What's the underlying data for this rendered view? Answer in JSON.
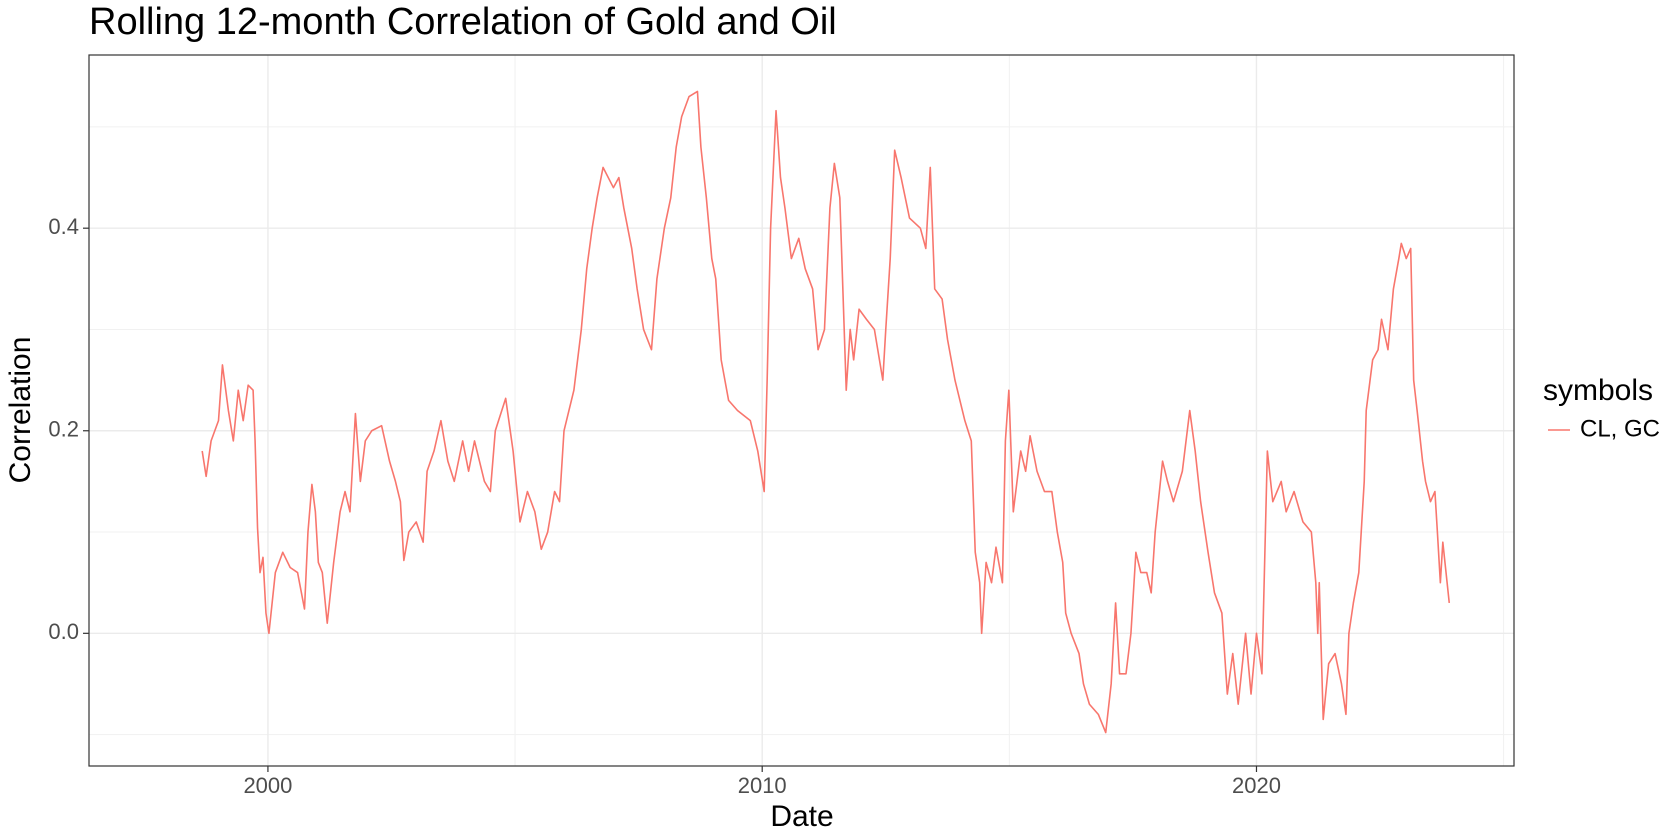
{
  "chart_data": {
    "type": "line",
    "title": "Rolling 12-month Correlation of Gold and Oil",
    "x_label": "Date",
    "y_label": "Correlation",
    "legend_title": "symbols",
    "x": [
      1998.67,
      1998.75,
      1998.85,
      1999.0,
      1999.08,
      1999.2,
      1999.3,
      1999.4,
      1999.5,
      1999.6,
      1999.7,
      1999.74,
      1999.79,
      1999.84,
      1999.9,
      1999.96,
      2000.02,
      2000.15,
      2000.3,
      2000.45,
      2000.6,
      2000.74,
      2000.81,
      2000.89,
      2000.96,
      2001.02,
      2001.1,
      2001.2,
      2001.33,
      2001.46,
      2001.56,
      2001.66,
      2001.77,
      2001.87,
      2001.97,
      2002.1,
      2002.3,
      2002.46,
      2002.58,
      2002.68,
      2002.75,
      2002.85,
      2003.0,
      2003.14,
      2003.22,
      2003.36,
      2003.5,
      2003.64,
      2003.77,
      2003.94,
      2004.06,
      2004.18,
      2004.38,
      2004.5,
      2004.6,
      2004.81,
      2004.96,
      2005.1,
      2005.25,
      2005.4,
      2005.53,
      2005.66,
      2005.8,
      2005.9,
      2005.99,
      2006.19,
      2006.34,
      2006.45,
      2006.56,
      2006.66,
      2006.78,
      2006.99,
      2007.1,
      2007.2,
      2007.36,
      2007.47,
      2007.6,
      2007.76,
      2007.87,
      2008.02,
      2008.15,
      2008.26,
      2008.37,
      2008.52,
      2008.69,
      2008.76,
      2008.87,
      2008.98,
      2009.06,
      2009.17,
      2009.32,
      2009.5,
      2009.76,
      2009.91,
      2010.04,
      2010.1,
      2010.17,
      2010.28,
      2010.37,
      2010.46,
      2010.59,
      2010.74,
      2010.87,
      2011.02,
      2011.13,
      2011.26,
      2011.37,
      2011.46,
      2011.57,
      2011.7,
      2011.78,
      2011.85,
      2011.96,
      2012.11,
      2012.27,
      2012.44,
      2012.5,
      2012.59,
      2012.68,
      2012.81,
      2012.98,
      2013.2,
      2013.31,
      2013.4,
      2013.49,
      2013.64,
      2013.75,
      2013.9,
      2014.1,
      2014.23,
      2014.31,
      2014.4,
      2014.44,
      2014.53,
      2014.64,
      2014.73,
      2014.86,
      2014.92,
      2014.99,
      2015.08,
      2015.23,
      2015.33,
      2015.42,
      2015.56,
      2015.71,
      2015.86,
      2015.97,
      2016.08,
      2016.14,
      2016.25,
      2016.41,
      2016.5,
      2016.62,
      2016.8,
      2016.95,
      2017.06,
      2017.15,
      2017.23,
      2017.36,
      2017.46,
      2017.56,
      2017.66,
      2017.78,
      2017.87,
      2017.95,
      2018.1,
      2018.2,
      2018.32,
      2018.5,
      2018.65,
      2018.76,
      2018.87,
      2019.02,
      2019.15,
      2019.3,
      2019.41,
      2019.52,
      2019.63,
      2019.78,
      2019.89,
      2020.0,
      2020.11,
      2020.22,
      2020.33,
      2020.5,
      2020.6,
      2020.76,
      2020.94,
      2021.11,
      2021.2,
      2021.24,
      2021.27,
      2021.35,
      2021.46,
      2021.59,
      2021.72,
      2021.81,
      2021.87,
      2021.96,
      2022.07,
      2022.18,
      2022.22,
      2022.35,
      2022.46,
      2022.53,
      2022.66,
      2022.77,
      2022.88,
      2022.93,
      2023.03,
      2023.12,
      2023.18,
      2023.25,
      2023.36,
      2023.42,
      2023.52,
      2023.61,
      2023.66,
      2023.72,
      2023.77,
      2023.9
    ],
    "series": [
      {
        "name": "CL, GC",
        "color": "#F8766D",
        "values": [
          0.18,
          0.155,
          0.19,
          0.21,
          0.265,
          0.22,
          0.19,
          0.24,
          0.21,
          0.245,
          0.24,
          0.19,
          0.104,
          0.06,
          0.075,
          0.02,
          0.0,
          0.06,
          0.08,
          0.065,
          0.06,
          0.024,
          0.1,
          0.147,
          0.12,
          0.07,
          0.06,
          0.01,
          0.07,
          0.12,
          0.14,
          0.12,
          0.217,
          0.15,
          0.19,
          0.2,
          0.205,
          0.17,
          0.15,
          0.13,
          0.072,
          0.1,
          0.11,
          0.09,
          0.16,
          0.18,
          0.21,
          0.17,
          0.15,
          0.19,
          0.16,
          0.19,
          0.15,
          0.14,
          0.2,
          0.232,
          0.18,
          0.11,
          0.14,
          0.12,
          0.083,
          0.1,
          0.14,
          0.13,
          0.2,
          0.24,
          0.3,
          0.36,
          0.4,
          0.43,
          0.46,
          0.44,
          0.45,
          0.42,
          0.38,
          0.34,
          0.3,
          0.28,
          0.35,
          0.4,
          0.43,
          0.48,
          0.51,
          0.53,
          0.535,
          0.48,
          0.43,
          0.37,
          0.35,
          0.27,
          0.23,
          0.22,
          0.21,
          0.18,
          0.14,
          0.25,
          0.4,
          0.516,
          0.45,
          0.42,
          0.37,
          0.39,
          0.36,
          0.34,
          0.28,
          0.3,
          0.42,
          0.464,
          0.43,
          0.24,
          0.3,
          0.27,
          0.32,
          0.31,
          0.3,
          0.25,
          0.3,
          0.37,
          0.477,
          0.45,
          0.41,
          0.4,
          0.38,
          0.46,
          0.34,
          0.33,
          0.29,
          0.25,
          0.21,
          0.19,
          0.08,
          0.05,
          0.0,
          0.07,
          0.05,
          0.085,
          0.05,
          0.19,
          0.24,
          0.12,
          0.18,
          0.16,
          0.195,
          0.16,
          0.14,
          0.14,
          0.1,
          0.07,
          0.02,
          0.0,
          -0.02,
          -0.05,
          -0.07,
          -0.08,
          -0.098,
          -0.05,
          0.03,
          -0.04,
          -0.04,
          0.0,
          0.08,
          0.06,
          0.06,
          0.04,
          0.1,
          0.17,
          0.15,
          0.13,
          0.16,
          0.22,
          0.18,
          0.13,
          0.08,
          0.04,
          0.02,
          -0.06,
          -0.02,
          -0.07,
          0.0,
          -0.06,
          0.0,
          -0.04,
          0.18,
          0.13,
          0.15,
          0.12,
          0.14,
          0.11,
          0.1,
          0.05,
          0.0,
          0.05,
          -0.085,
          -0.03,
          -0.02,
          -0.05,
          -0.08,
          0.0,
          0.03,
          0.06,
          0.15,
          0.22,
          0.27,
          0.28,
          0.31,
          0.28,
          0.34,
          0.37,
          0.385,
          0.37,
          0.38,
          0.25,
          0.22,
          0.17,
          0.15,
          0.13,
          0.14,
          0.1,
          0.05,
          0.09,
          0.03
        ]
      }
    ],
    "xlim": [
      1996.38,
      2025.21
    ],
    "ylim": [
      -0.131,
      0.571
    ],
    "xticks": [
      2000,
      2010,
      2020
    ],
    "yticks": [
      {
        "value": 0,
        "label": "0.0"
      },
      {
        "value": 0.2,
        "label": "0.2"
      },
      {
        "value": 0.4,
        "label": "0.4"
      }
    ],
    "xminorticks": [
      2005,
      2015,
      2025
    ],
    "yminorticks": [
      -0.1,
      0.1,
      0.3,
      0.5
    ],
    "grid": true
  }
}
